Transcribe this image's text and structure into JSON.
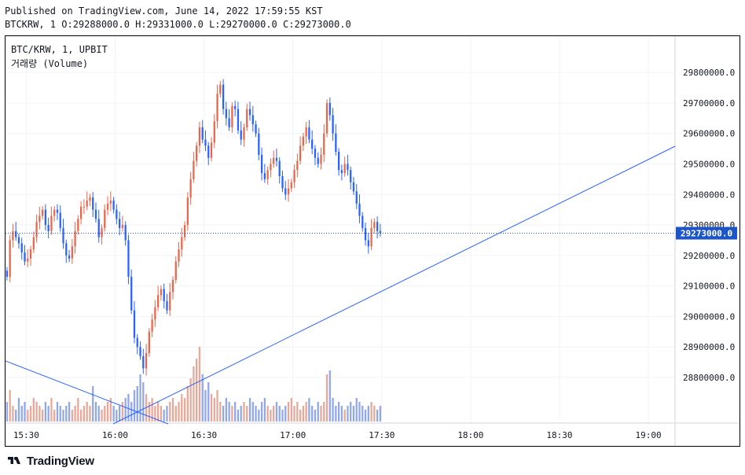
{
  "header": {
    "published": "Published on TradingView.com, June 14, 2022 17:59:55 KST",
    "ohlc": "BTCKRW, 1 O:29288000.0 H:29331000.0 L:29270000.0 C:29273000.0"
  },
  "legend": {
    "symbol": "BTC/KRW, 1, UPBIT",
    "volume": "거래량 (Volume)"
  },
  "footer": {
    "brand": "TradingView"
  },
  "colors": {
    "up": "#26a69a",
    "down": "#ef5350",
    "candle_bull": "#e8664a",
    "candle_bear": "#2962ff",
    "vol_bull": "#e8a797",
    "vol_bear": "#90a8e8",
    "trendline": "#2962ff",
    "price_label_bg": "#1c55c8",
    "grid": "#f0f3fa"
  },
  "chart_data": {
    "type": "candlestick",
    "symbol": "BTC/KRW",
    "interval": "1",
    "exchange": "UPBIT",
    "price_axis_ticks": [
      29800000,
      29700000,
      29600000,
      29500000,
      29400000,
      29300000,
      29200000,
      29100000,
      29000000,
      28900000,
      28800000
    ],
    "price_axis_labels": [
      "29800000.0",
      "29700000.0",
      "29600000.0",
      "29500000.0",
      "29400000.0",
      "29300000.0",
      "29200000.0",
      "29100000.0",
      "29000000.0",
      "28900000.0",
      "28800000.0"
    ],
    "ylim": [
      28720000,
      29870000
    ],
    "time_axis_labels": [
      "15:30",
      "16:00",
      "16:30",
      "17:00",
      "17:30",
      "18:00",
      "18:30",
      "19:00"
    ],
    "time_axis_minutes": [
      930,
      960,
      990,
      1020,
      1050,
      1080,
      1110,
      1140
    ],
    "xlim_minutes": [
      923,
      1149
    ],
    "current_price": 29273000,
    "current_price_label": "29273000.0",
    "candle_start_minute": 923,
    "candles_close": [
      29130000,
      29250000,
      29280000,
      29260000,
      29240000,
      29210000,
      29180000,
      29190000,
      29220000,
      29260000,
      29310000,
      29330000,
      29350000,
      29300000,
      29280000,
      29330000,
      29350000,
      29340000,
      29290000,
      29240000,
      29200000,
      29190000,
      29230000,
      29280000,
      29320000,
      29360000,
      29360000,
      29380000,
      29390000,
      29350000,
      29320000,
      29260000,
      29290000,
      29350000,
      29370000,
      29380000,
      29350000,
      29320000,
      29290000,
      29300000,
      29250000,
      29130000,
      29020000,
      28930000,
      28900000,
      28870000,
      28830000,
      28880000,
      28950000,
      28990000,
      29030000,
      29070000,
      29090000,
      29050000,
      29020000,
      29080000,
      29120000,
      29180000,
      29220000,
      29260000,
      29300000,
      29390000,
      29450000,
      29510000,
      29560000,
      29620000,
      29580000,
      29560000,
      29520000,
      29570000,
      29640000,
      29730000,
      29760000,
      29680000,
      29650000,
      29620000,
      29690000,
      29680000,
      29610000,
      29580000,
      29620000,
      29680000,
      29660000,
      29630000,
      29600000,
      29530000,
      29470000,
      29450000,
      29480000,
      29500000,
      29520000,
      29510000,
      29460000,
      29420000,
      29400000,
      29420000,
      29440000,
      29480000,
      29510000,
      29560000,
      29590000,
      29620000,
      29580000,
      29550000,
      29520000,
      29500000,
      29530000,
      29600000,
      29700000,
      29660000,
      29600000,
      29540000,
      29480000,
      29470000,
      29500000,
      29480000,
      29440000,
      29410000,
      29370000,
      29330000,
      29290000,
      29250000,
      29230000,
      29290000,
      29310000,
      29280000,
      29273000
    ],
    "volumes": [
      5,
      8,
      4,
      3,
      6,
      4,
      5,
      3,
      4,
      6,
      5,
      4,
      3,
      5,
      4,
      6,
      3,
      5,
      4,
      3,
      4,
      5,
      3,
      4,
      6,
      3,
      4,
      5,
      4,
      9,
      5,
      4,
      3,
      4,
      5,
      6,
      4,
      3,
      4,
      5,
      6,
      7,
      5,
      8,
      9,
      12,
      10,
      7,
      5,
      6,
      4,
      5,
      4,
      3,
      4,
      5,
      6,
      4,
      5,
      7,
      6,
      9,
      11,
      14,
      16,
      19,
      12,
      8,
      10,
      7,
      6,
      8,
      5,
      4,
      6,
      5,
      4,
      5,
      3,
      4,
      5,
      4,
      6,
      5,
      4,
      3,
      5,
      6,
      4,
      3,
      4,
      5,
      4,
      3,
      4,
      5,
      6,
      4,
      5,
      3,
      4,
      5,
      6,
      4,
      3,
      5,
      4,
      5,
      12,
      13,
      6,
      4,
      5,
      4,
      3,
      4,
      5,
      4,
      6,
      5,
      4,
      3,
      4,
      5,
      4,
      3,
      4
    ]
  }
}
